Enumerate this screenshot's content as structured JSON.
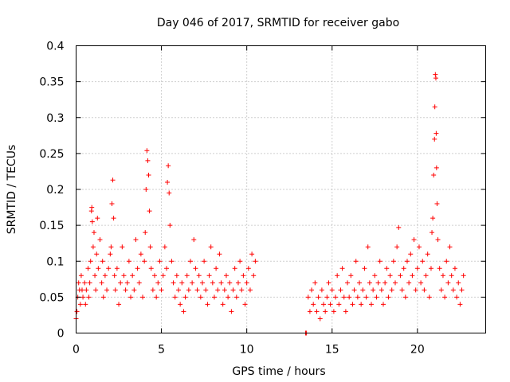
{
  "chart_data": {
    "type": "scatter",
    "title": "Day 046 of 2017, SRMTID for receiver gabo",
    "xlabel": "GPS time / hours",
    "ylabel": "SRMTID / TECUs",
    "xlim": [
      0,
      24
    ],
    "ylim": [
      0,
      0.4
    ],
    "x_ticks": [
      0,
      5,
      10,
      15,
      20
    ],
    "x_tick_labels": [
      "0",
      "5",
      "10",
      "15",
      "20"
    ],
    "y_ticks": [
      0,
      0.05,
      0.1,
      0.15,
      0.2,
      0.25,
      0.3,
      0.35,
      0.4
    ],
    "y_tick_labels": [
      "0",
      "0.05",
      "0.1",
      "0.15",
      "0.2",
      "0.25",
      "0.3",
      "0.35",
      "0.4"
    ],
    "grid": true,
    "marker": "+",
    "color": "#ff0000",
    "data_gap_hours": [
      10.5,
      13.4
    ],
    "series": [
      {
        "name": "SRMTID",
        "points": [
          [
            0.0,
            0.02
          ],
          [
            0.05,
            0.03
          ],
          [
            0.1,
            0.05
          ],
          [
            0.15,
            0.07
          ],
          [
            0.2,
            0.06
          ],
          [
            0.25,
            0.04
          ],
          [
            0.3,
            0.08
          ],
          [
            0.35,
            0.06
          ],
          [
            0.4,
            0.05
          ],
          [
            0.5,
            0.07
          ],
          [
            0.55,
            0.04
          ],
          [
            0.6,
            0.06
          ],
          [
            0.7,
            0.09
          ],
          [
            0.75,
            0.05
          ],
          [
            0.8,
            0.07
          ],
          [
            0.85,
            0.1
          ],
          [
            0.9,
            0.17
          ],
          [
            0.92,
            0.175
          ],
          [
            0.95,
            0.155
          ],
          [
            1.0,
            0.12
          ],
          [
            1.05,
            0.14
          ],
          [
            1.1,
            0.08
          ],
          [
            1.15,
            0.06
          ],
          [
            1.2,
            0.11
          ],
          [
            1.25,
            0.16
          ],
          [
            1.3,
            0.09
          ],
          [
            1.4,
            0.13
          ],
          [
            1.5,
            0.07
          ],
          [
            1.55,
            0.1
          ],
          [
            1.6,
            0.05
          ],
          [
            1.7,
            0.08
          ],
          [
            1.8,
            0.06
          ],
          [
            1.9,
            0.09
          ],
          [
            2.0,
            0.11
          ],
          [
            2.05,
            0.12
          ],
          [
            2.1,
            0.18
          ],
          [
            2.15,
            0.213
          ],
          [
            2.2,
            0.16
          ],
          [
            2.25,
            0.08
          ],
          [
            2.3,
            0.06
          ],
          [
            2.4,
            0.09
          ],
          [
            2.5,
            0.04
          ],
          [
            2.6,
            0.07
          ],
          [
            2.7,
            0.12
          ],
          [
            2.8,
            0.08
          ],
          [
            2.9,
            0.06
          ],
          [
            3.0,
            0.07
          ],
          [
            3.1,
            0.1
          ],
          [
            3.2,
            0.05
          ],
          [
            3.3,
            0.08
          ],
          [
            3.4,
            0.06
          ],
          [
            3.5,
            0.13
          ],
          [
            3.6,
            0.09
          ],
          [
            3.7,
            0.07
          ],
          [
            3.8,
            0.11
          ],
          [
            3.9,
            0.05
          ],
          [
            4.0,
            0.1
          ],
          [
            4.05,
            0.14
          ],
          [
            4.1,
            0.2
          ],
          [
            4.15,
            0.254
          ],
          [
            4.2,
            0.24
          ],
          [
            4.25,
            0.22
          ],
          [
            4.3,
            0.17
          ],
          [
            4.35,
            0.12
          ],
          [
            4.4,
            0.09
          ],
          [
            4.5,
            0.06
          ],
          [
            4.6,
            0.08
          ],
          [
            4.7,
            0.05
          ],
          [
            4.8,
            0.07
          ],
          [
            4.9,
            0.1
          ],
          [
            5.0,
            0.06
          ],
          [
            5.1,
            0.08
          ],
          [
            5.2,
            0.12
          ],
          [
            5.3,
            0.09
          ],
          [
            5.35,
            0.21
          ],
          [
            5.4,
            0.233
          ],
          [
            5.45,
            0.195
          ],
          [
            5.5,
            0.15
          ],
          [
            5.6,
            0.1
          ],
          [
            5.7,
            0.07
          ],
          [
            5.8,
            0.05
          ],
          [
            5.9,
            0.08
          ],
          [
            6.0,
            0.06
          ],
          [
            6.1,
            0.04
          ],
          [
            6.2,
            0.07
          ],
          [
            6.3,
            0.03
          ],
          [
            6.4,
            0.05
          ],
          [
            6.5,
            0.08
          ],
          [
            6.6,
            0.06
          ],
          [
            6.7,
            0.1
          ],
          [
            6.8,
            0.07
          ],
          [
            6.9,
            0.13
          ],
          [
            7.0,
            0.09
          ],
          [
            7.1,
            0.06
          ],
          [
            7.2,
            0.08
          ],
          [
            7.3,
            0.05
          ],
          [
            7.4,
            0.07
          ],
          [
            7.5,
            0.1
          ],
          [
            7.6,
            0.06
          ],
          [
            7.7,
            0.04
          ],
          [
            7.8,
            0.08
          ],
          [
            7.9,
            0.12
          ],
          [
            8.0,
            0.07
          ],
          [
            8.1,
            0.05
          ],
          [
            8.2,
            0.09
          ],
          [
            8.3,
            0.06
          ],
          [
            8.4,
            0.11
          ],
          [
            8.5,
            0.07
          ],
          [
            8.6,
            0.04
          ],
          [
            8.7,
            0.06
          ],
          [
            8.8,
            0.08
          ],
          [
            8.9,
            0.05
          ],
          [
            9.0,
            0.07
          ],
          [
            9.1,
            0.03
          ],
          [
            9.2,
            0.06
          ],
          [
            9.3,
            0.09
          ],
          [
            9.4,
            0.05
          ],
          [
            9.5,
            0.07
          ],
          [
            9.6,
            0.1
          ],
          [
            9.7,
            0.06
          ],
          [
            9.8,
            0.08
          ],
          [
            9.9,
            0.04
          ],
          [
            10.0,
            0.07
          ],
          [
            10.1,
            0.09
          ],
          [
            10.2,
            0.06
          ],
          [
            10.3,
            0.11
          ],
          [
            10.4,
            0.08
          ],
          [
            10.5,
            0.1
          ],
          [
            13.45,
            0.0
          ],
          [
            13.5,
            0.0
          ],
          [
            13.6,
            0.05
          ],
          [
            13.7,
            0.03
          ],
          [
            13.8,
            0.06
          ],
          [
            13.9,
            0.04
          ],
          [
            14.0,
            0.07
          ],
          [
            14.1,
            0.03
          ],
          [
            14.2,
            0.05
          ],
          [
            14.3,
            0.02
          ],
          [
            14.4,
            0.06
          ],
          [
            14.5,
            0.04
          ],
          [
            14.6,
            0.03
          ],
          [
            14.7,
            0.05
          ],
          [
            14.8,
            0.07
          ],
          [
            14.9,
            0.04
          ],
          [
            15.0,
            0.06
          ],
          [
            15.1,
            0.03
          ],
          [
            15.2,
            0.05
          ],
          [
            15.3,
            0.08
          ],
          [
            15.4,
            0.04
          ],
          [
            15.5,
            0.06
          ],
          [
            15.6,
            0.09
          ],
          [
            15.7,
            0.05
          ],
          [
            15.8,
            0.03
          ],
          [
            15.9,
            0.07
          ],
          [
            16.0,
            0.05
          ],
          [
            16.1,
            0.08
          ],
          [
            16.2,
            0.04
          ],
          [
            16.3,
            0.06
          ],
          [
            16.4,
            0.1
          ],
          [
            16.5,
            0.05
          ],
          [
            16.6,
            0.07
          ],
          [
            16.7,
            0.04
          ],
          [
            16.8,
            0.06
          ],
          [
            16.9,
            0.09
          ],
          [
            17.0,
            0.05
          ],
          [
            17.1,
            0.12
          ],
          [
            17.2,
            0.07
          ],
          [
            17.3,
            0.04
          ],
          [
            17.4,
            0.06
          ],
          [
            17.5,
            0.08
          ],
          [
            17.6,
            0.05
          ],
          [
            17.7,
            0.07
          ],
          [
            17.8,
            0.1
          ],
          [
            17.9,
            0.06
          ],
          [
            18.0,
            0.04
          ],
          [
            18.1,
            0.07
          ],
          [
            18.2,
            0.09
          ],
          [
            18.3,
            0.05
          ],
          [
            18.4,
            0.08
          ],
          [
            18.5,
            0.06
          ],
          [
            18.6,
            0.1
          ],
          [
            18.7,
            0.07
          ],
          [
            18.8,
            0.12
          ],
          [
            18.9,
            0.147
          ],
          [
            19.0,
            0.08
          ],
          [
            19.1,
            0.06
          ],
          [
            19.2,
            0.09
          ],
          [
            19.3,
            0.05
          ],
          [
            19.4,
            0.1
          ],
          [
            19.5,
            0.07
          ],
          [
            19.6,
            0.11
          ],
          [
            19.7,
            0.08
          ],
          [
            19.8,
            0.13
          ],
          [
            19.9,
            0.06
          ],
          [
            20.0,
            0.09
          ],
          [
            20.1,
            0.12
          ],
          [
            20.2,
            0.07
          ],
          [
            20.3,
            0.1
          ],
          [
            20.4,
            0.06
          ],
          [
            20.5,
            0.08
          ],
          [
            20.6,
            0.11
          ],
          [
            20.7,
            0.05
          ],
          [
            20.8,
            0.09
          ],
          [
            20.85,
            0.14
          ],
          [
            20.9,
            0.16
          ],
          [
            20.95,
            0.22
          ],
          [
            21.0,
            0.27
          ],
          [
            21.02,
            0.315
          ],
          [
            21.05,
            0.36
          ],
          [
            21.08,
            0.355
          ],
          [
            21.1,
            0.278
          ],
          [
            21.12,
            0.23
          ],
          [
            21.15,
            0.18
          ],
          [
            21.2,
            0.13
          ],
          [
            21.3,
            0.09
          ],
          [
            21.4,
            0.06
          ],
          [
            21.5,
            0.08
          ],
          [
            21.6,
            0.05
          ],
          [
            21.7,
            0.1
          ],
          [
            21.8,
            0.07
          ],
          [
            21.9,
            0.12
          ],
          [
            22.0,
            0.08
          ],
          [
            22.1,
            0.06
          ],
          [
            22.2,
            0.09
          ],
          [
            22.3,
            0.05
          ],
          [
            22.4,
            0.07
          ],
          [
            22.5,
            0.04
          ],
          [
            22.6,
            0.06
          ],
          [
            22.7,
            0.08
          ]
        ]
      }
    ]
  }
}
